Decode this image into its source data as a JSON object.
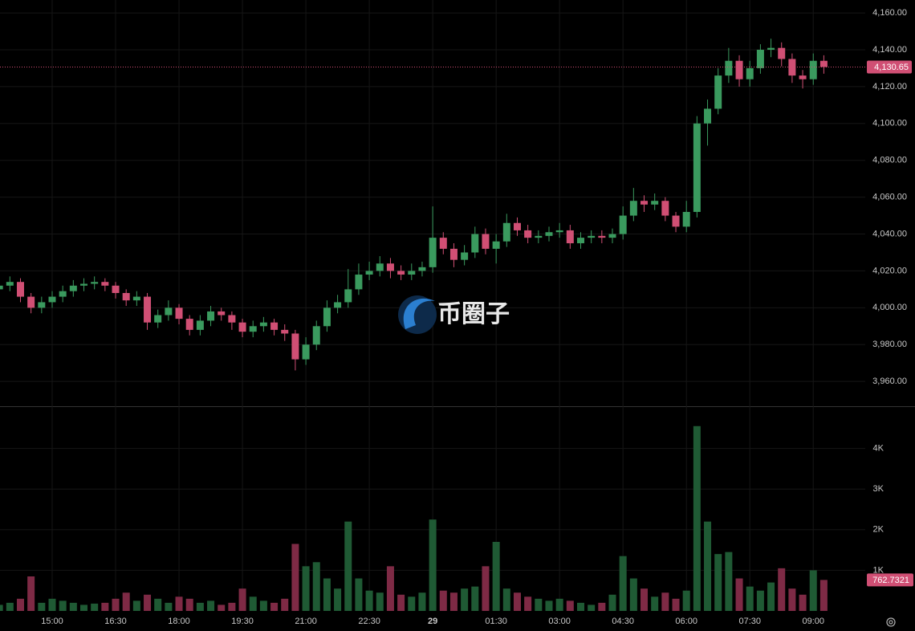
{
  "chart_data": {
    "type": "candlestick",
    "watermark": "币圈子",
    "categories": [
      null,
      null,
      null,
      null,
      null,
      "15:00",
      null,
      null,
      null,
      null,
      null,
      "16:30",
      null,
      null,
      null,
      null,
      null,
      "18:00",
      null,
      null,
      null,
      null,
      null,
      "19:30",
      null,
      null,
      null,
      null,
      null,
      "21:00",
      null,
      null,
      null,
      null,
      null,
      "22:30",
      null,
      null,
      null,
      null,
      null,
      "29",
      null,
      null,
      null,
      null,
      null,
      "01:30",
      null,
      null,
      null,
      null,
      null,
      "03:00",
      null,
      null,
      null,
      null,
      null,
      "04:30",
      null,
      null,
      null,
      null,
      null,
      "06:00",
      null,
      null,
      null,
      null,
      null,
      "07:30",
      null,
      null,
      null,
      null,
      null,
      "09:00",
      null
    ],
    "open": [
      4010,
      4012,
      4014,
      4006,
      4000,
      4003,
      4006,
      4009,
      4012,
      4013,
      4014,
      4012,
      4008,
      4004,
      4006,
      3992,
      3996,
      4000,
      3994,
      3988,
      3993,
      3998,
      3996,
      3992,
      3987,
      3990,
      3992,
      3988,
      3986,
      3972,
      3980,
      3990,
      4000,
      4003,
      4010,
      4018,
      4020,
      4024,
      4020,
      4018,
      4020,
      4022,
      4038,
      4032,
      4026,
      4030,
      4040,
      4032,
      4036,
      4046,
      4042,
      4038,
      4039,
      4041,
      4042,
      4035,
      4038,
      4039,
      4038,
      4040,
      4050,
      4058,
      4056,
      4058,
      4050,
      4044,
      4052,
      4100,
      4108,
      4126,
      4134,
      4124,
      4130,
      4140,
      4141,
      4135,
      4126,
      4124,
      4134
    ],
    "high": [
      4015,
      4017,
      4016,
      4008,
      4006,
      4009,
      4012,
      4015,
      4016,
      4017,
      4016,
      4014,
      4010,
      4009,
      4008,
      3999,
      4004,
      4002,
      3996,
      3996,
      4001,
      4000,
      3998,
      3994,
      3993,
      3995,
      3994,
      3991,
      3988,
      3984,
      3993,
      4004,
      4007,
      4021,
      4024,
      4025,
      4028,
      4027,
      4023,
      4024,
      4025,
      4055,
      4041,
      4035,
      4034,
      4044,
      4043,
      4040,
      4051,
      4049,
      4045,
      4042,
      4044,
      4046,
      4045,
      4041,
      4042,
      4042,
      4043,
      4055,
      4065,
      4061,
      4062,
      4060,
      4052,
      4058,
      4104,
      4113,
      4130,
      4141,
      4137,
      4134,
      4143,
      4146,
      4144,
      4138,
      4129,
      4138,
      4137
    ],
    "low": [
      4007,
      4009,
      4003,
      3997,
      3997,
      4000,
      4003,
      4006,
      4009,
      4010,
      4009,
      4005,
      4001,
      4001,
      3988,
      3989,
      3993,
      3991,
      3985,
      3985,
      3990,
      3993,
      3988,
      3984,
      3984,
      3987,
      3985,
      3982,
      3966,
      3969,
      3977,
      3987,
      3997,
      4000,
      4007,
      4015,
      4017,
      4016,
      4015,
      4015,
      4017,
      4019,
      4029,
      4022,
      4023,
      4027,
      4029,
      4024,
      4033,
      4039,
      4035,
      4035,
      4036,
      4038,
      4032,
      4032,
      4035,
      4035,
      4035,
      4037,
      4047,
      4052,
      4053,
      4047,
      4041,
      4041,
      4049,
      4088,
      4105,
      4122,
      4120,
      4120,
      4127,
      4136,
      4131,
      4122,
      4119,
      4121,
      4127
    ],
    "close": [
      4012,
      4014,
      4006,
      4000,
      4003,
      4006,
      4009,
      4012,
      4013,
      4014,
      4012,
      4008,
      4004,
      4006,
      3992,
      3996,
      4000,
      3994,
      3988,
      3993,
      3998,
      3996,
      3992,
      3987,
      3990,
      3992,
      3988,
      3986,
      3972,
      3980,
      3990,
      4000,
      4003,
      4010,
      4018,
      4020,
      4024,
      4020,
      4018,
      4020,
      4022,
      4038,
      4032,
      4026,
      4030,
      4040,
      4032,
      4036,
      4046,
      4042,
      4038,
      4039,
      4041,
      4042,
      4035,
      4038,
      4039,
      4038,
      4040,
      4050,
      4058,
      4056,
      4058,
      4050,
      4044,
      4052,
      4100,
      4108,
      4126,
      4134,
      4124,
      4130,
      4140,
      4141,
      4135,
      4126,
      4124,
      4134,
      4130.65
    ],
    "last_price_label": "4,130.65",
    "volume": [
      150,
      200,
      300,
      850,
      200,
      300,
      250,
      200,
      150,
      180,
      200,
      300,
      450,
      250,
      400,
      300,
      200,
      350,
      300,
      200,
      250,
      150,
      200,
      550,
      350,
      250,
      200,
      300,
      1650,
      1100,
      1200,
      800,
      550,
      2200,
      800,
      500,
      450,
      1100,
      400,
      350,
      450,
      2250,
      500,
      450,
      550,
      600,
      1100,
      1700,
      550,
      450,
      350,
      300,
      250,
      300,
      250,
      200,
      150,
      200,
      400,
      1350,
      800,
      550,
      350,
      450,
      300,
      500,
      4550,
      2200,
      1400,
      1450,
      800,
      600,
      500,
      700,
      1050,
      550,
      400,
      1000,
      762.7321
    ],
    "up_color": "#3a9a5e",
    "down_color": "#d04f74",
    "volume_up_color": "#1f5a34",
    "volume_down_color": "#7e2a45",
    "ylim": [
      3947,
      4167
    ],
    "yticks": [
      {
        "value": 3960,
        "label": "3,960.00"
      },
      {
        "value": 3980,
        "label": "3,980.00"
      },
      {
        "value": 4000,
        "label": "4,000.00"
      },
      {
        "value": 4020,
        "label": "4,020.00"
      },
      {
        "value": 4040,
        "label": "4,040.00"
      },
      {
        "value": 4060,
        "label": "4,060.00"
      },
      {
        "value": 4080,
        "label": "4,080.00"
      },
      {
        "value": 4100,
        "label": "4,100.00"
      },
      {
        "value": 4120,
        "label": "4,120.00"
      },
      {
        "value": 4140,
        "label": "4,140.00"
      },
      {
        "value": 4160,
        "label": "4,160.00"
      }
    ],
    "volume_ylim": [
      0,
      5000
    ],
    "volume_ticks": [
      {
        "value": 1000,
        "label": "1K"
      },
      {
        "value": 2000,
        "label": "2K"
      },
      {
        "value": 3000,
        "label": "3K"
      },
      {
        "value": 4000,
        "label": "4K"
      }
    ],
    "grid": true
  }
}
